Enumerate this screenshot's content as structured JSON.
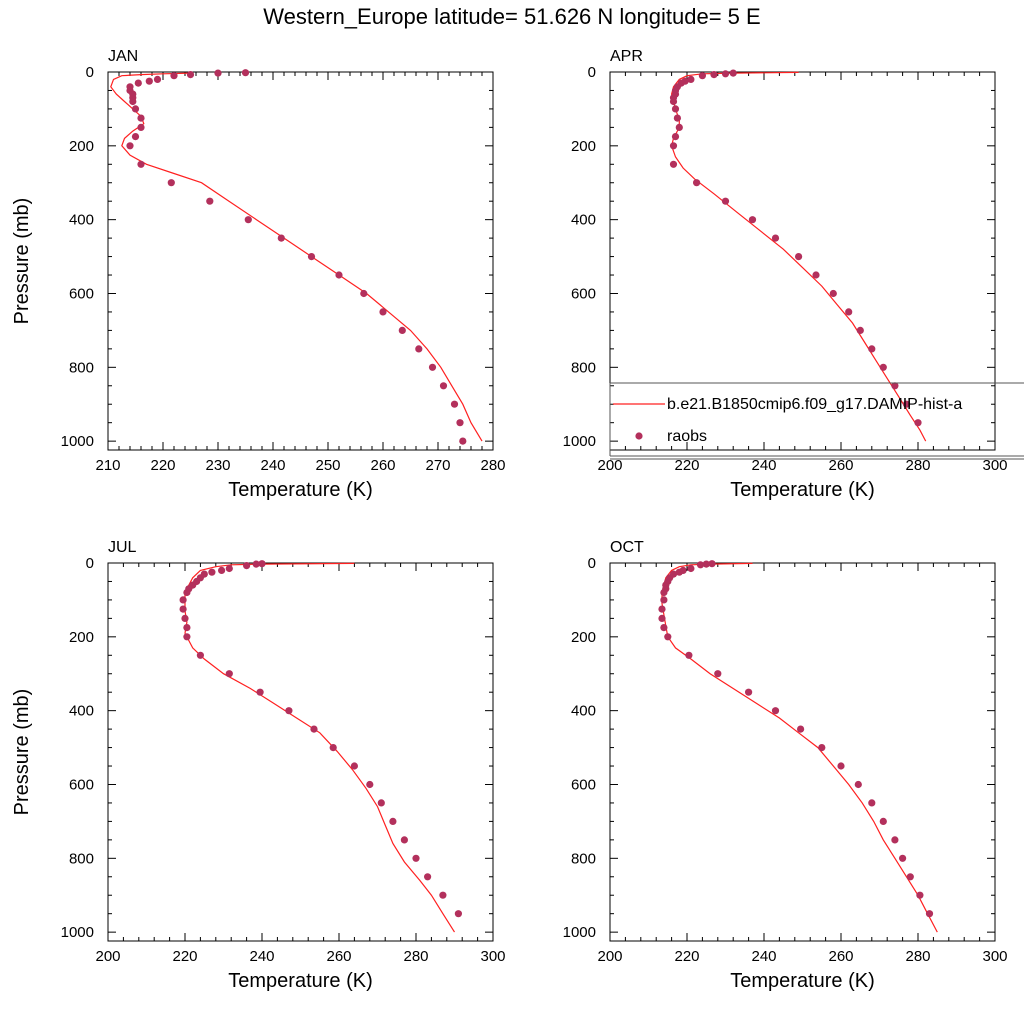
{
  "title": "Western_Europe  latitude= 51.626 N longitude= 5 E",
  "colors": {
    "model": "#ff2020",
    "obs": "#b3305c",
    "axis": "#000000"
  },
  "legend": {
    "entries": [
      {
        "label": "b.e21.B1850cmip6.f09_g17.DAMIP-hist-a",
        "kind": "line"
      },
      {
        "label": "raobs",
        "kind": "marker"
      }
    ]
  },
  "chart_data": [
    {
      "type": "line",
      "title": "JAN",
      "xlabel": "Temperature (K)",
      "ylabel": "Pressure (mb)",
      "xlim": [
        210,
        280
      ],
      "ylim": [
        1024,
        0
      ],
      "xticks": [
        210,
        220,
        230,
        240,
        250,
        260,
        270,
        280
      ],
      "yticks": [
        0,
        200,
        400,
        600,
        800,
        1000
      ],
      "series": [
        {
          "kind": "model",
          "points": [
            [
              225,
              3
            ],
            [
              220,
              5
            ],
            [
              216,
              7
            ],
            [
              212.5,
              10
            ],
            [
              211,
              20
            ],
            [
              210.5,
              40
            ],
            [
              211.5,
              60
            ],
            [
              213,
              80
            ],
            [
              214.5,
              100
            ],
            [
              216,
              120
            ],
            [
              216.5,
              140
            ],
            [
              214.5,
              160
            ],
            [
              213,
              180
            ],
            [
              212.5,
              200
            ],
            [
              214,
              225
            ],
            [
              217,
              250
            ],
            [
              222,
              275
            ],
            [
              227,
              300
            ],
            [
              232,
              350
            ],
            [
              237,
              400
            ],
            [
              242,
              450
            ],
            [
              247,
              500
            ],
            [
              252,
              550
            ],
            [
              257,
              600
            ],
            [
              261,
              650
            ],
            [
              265,
              700
            ],
            [
              268,
              750
            ],
            [
              270.5,
              800
            ],
            [
              272.5,
              850
            ],
            [
              274.5,
              900
            ],
            [
              276,
              950
            ],
            [
              278,
              1000
            ]
          ]
        },
        {
          "kind": "obs",
          "points": [
            [
              235,
              2
            ],
            [
              230,
              3
            ],
            [
              225,
              7
            ],
            [
              222,
              10
            ],
            [
              219,
              20
            ],
            [
              217.5,
              25
            ],
            [
              215.5,
              30
            ],
            [
              214,
              40
            ],
            [
              214,
              50
            ],
            [
              214.5,
              60
            ],
            [
              214.5,
              70
            ],
            [
              214.5,
              80
            ],
            [
              215,
              100
            ],
            [
              216,
              125
            ],
            [
              216,
              150
            ],
            [
              215,
              175
            ],
            [
              214,
              200
            ],
            [
              216,
              250
            ],
            [
              221.5,
              300
            ],
            [
              228.5,
              350
            ],
            [
              235.5,
              400
            ],
            [
              241.5,
              450
            ],
            [
              247,
              500
            ],
            [
              252,
              550
            ],
            [
              256.5,
              600
            ],
            [
              260,
              650
            ],
            [
              263.5,
              700
            ],
            [
              266.5,
              750
            ],
            [
              269,
              800
            ],
            [
              271,
              850
            ],
            [
              273,
              900
            ],
            [
              274,
              950
            ],
            [
              274.5,
              1000
            ]
          ]
        }
      ]
    },
    {
      "type": "line",
      "title": "APR",
      "xlabel": "Temperature (K)",
      "ylabel": "",
      "xlim": [
        200,
        300
      ],
      "ylim": [
        1024,
        0
      ],
      "xticks": [
        200,
        220,
        240,
        260,
        280,
        300
      ],
      "yticks": [
        0,
        200,
        400,
        600,
        800,
        1000
      ],
      "series": [
        {
          "kind": "model",
          "points": [
            [
              249,
              1
            ],
            [
              232,
              3
            ],
            [
              224,
              5
            ],
            [
              220,
              10
            ],
            [
              218,
              20
            ],
            [
              216.5,
              40
            ],
            [
              216,
              60
            ],
            [
              216.5,
              80
            ],
            [
              217,
              100
            ],
            [
              218,
              130
            ],
            [
              218,
              150
            ],
            [
              216.5,
              180
            ],
            [
              216,
              200
            ],
            [
              217,
              230
            ],
            [
              219,
              260
            ],
            [
              222,
              290
            ],
            [
              227,
              330
            ],
            [
              233,
              380
            ],
            [
              239,
              430
            ],
            [
              245,
              480
            ],
            [
              250,
              530
            ],
            [
              255,
              580
            ],
            [
              259,
              630
            ],
            [
              263,
              680
            ],
            [
              266,
              730
            ],
            [
              269,
              780
            ],
            [
              272,
              830
            ],
            [
              275,
              880
            ],
            [
              278,
              930
            ],
            [
              280.5,
              970
            ],
            [
              282,
              1000
            ]
          ]
        },
        {
          "kind": "obs",
          "points": [
            [
              232,
              3
            ],
            [
              230,
              5
            ],
            [
              227,
              7
            ],
            [
              224,
              10
            ],
            [
              221,
              20
            ],
            [
              219.5,
              25
            ],
            [
              218.5,
              30
            ],
            [
              217.5,
              40
            ],
            [
              217,
              50
            ],
            [
              217,
              60
            ],
            [
              216.5,
              70
            ],
            [
              216.5,
              80
            ],
            [
              217,
              100
            ],
            [
              217.5,
              125
            ],
            [
              218,
              150
            ],
            [
              217,
              175
            ],
            [
              216.5,
              200
            ],
            [
              216.5,
              250
            ],
            [
              222.5,
              300
            ],
            [
              230,
              350
            ],
            [
              237,
              400
            ],
            [
              243,
              450
            ],
            [
              249,
              500
            ],
            [
              253.5,
              550
            ],
            [
              258,
              600
            ],
            [
              262,
              650
            ],
            [
              265,
              700
            ],
            [
              268,
              750
            ],
            [
              271,
              800
            ],
            [
              274,
              850
            ],
            [
              277,
              900
            ],
            [
              280,
              950
            ]
          ]
        }
      ]
    },
    {
      "type": "line",
      "title": "JUL",
      "xlabel": "Temperature (K)",
      "ylabel": "Pressure (mb)",
      "xlim": [
        200,
        300
      ],
      "ylim": [
        1024,
        0
      ],
      "xticks": [
        200,
        220,
        240,
        260,
        280,
        300
      ],
      "yticks": [
        0,
        200,
        400,
        600,
        800,
        1000
      ],
      "series": [
        {
          "kind": "model",
          "points": [
            [
              264,
              1
            ],
            [
              240,
              3
            ],
            [
              232,
              5
            ],
            [
              228,
              10
            ],
            [
              224,
              20
            ],
            [
              222,
              40
            ],
            [
              221,
              60
            ],
            [
              220,
              80
            ],
            [
              220,
              100
            ],
            [
              220,
              130
            ],
            [
              220.5,
              160
            ],
            [
              220,
              190
            ],
            [
              221,
              210
            ],
            [
              222,
              230
            ],
            [
              225,
              260
            ],
            [
              230,
              300
            ],
            [
              237,
              340
            ],
            [
              243,
              380
            ],
            [
              249,
              420
            ],
            [
              255,
              460
            ],
            [
              259.5,
              510
            ],
            [
              263.5,
              560
            ],
            [
              267,
              610
            ],
            [
              270,
              660
            ],
            [
              272,
              710
            ],
            [
              274,
              760
            ],
            [
              277,
              810
            ],
            [
              281,
              860
            ],
            [
              284,
              900
            ],
            [
              287,
              950
            ],
            [
              290,
              1000
            ]
          ]
        },
        {
          "kind": "obs",
          "points": [
            [
              240,
              2
            ],
            [
              238.5,
              3
            ],
            [
              236,
              7
            ],
            [
              231.5,
              15
            ],
            [
              229.5,
              20
            ],
            [
              227,
              25
            ],
            [
              225,
              30
            ],
            [
              224,
              40
            ],
            [
              223,
              50
            ],
            [
              222,
              60
            ],
            [
              221,
              70
            ],
            [
              220.5,
              80
            ],
            [
              219.5,
              100
            ],
            [
              219.5,
              125
            ],
            [
              220,
              150
            ],
            [
              220.5,
              175
            ],
            [
              220.5,
              200
            ],
            [
              224,
              250
            ],
            [
              231.5,
              300
            ],
            [
              239.5,
              350
            ],
            [
              247,
              400
            ],
            [
              253.5,
              450
            ],
            [
              258.5,
              500
            ],
            [
              264,
              550
            ],
            [
              268,
              600
            ],
            [
              271,
              650
            ],
            [
              274,
              700
            ],
            [
              277,
              750
            ],
            [
              280,
              800
            ],
            [
              283,
              850
            ],
            [
              287,
              900
            ],
            [
              291,
              950
            ]
          ]
        }
      ]
    },
    {
      "type": "line",
      "title": "OCT",
      "xlabel": "Temperature (K)",
      "ylabel": "",
      "xlim": [
        200,
        300
      ],
      "ylim": [
        1024,
        0
      ],
      "xticks": [
        200,
        220,
        240,
        260,
        280,
        300
      ],
      "yticks": [
        0,
        200,
        400,
        600,
        800,
        1000
      ],
      "series": [
        {
          "kind": "model",
          "points": [
            [
              237,
              1
            ],
            [
              226,
              3
            ],
            [
              221,
              5
            ],
            [
              218,
              10
            ],
            [
              216,
              20
            ],
            [
              214.5,
              40
            ],
            [
              214,
              60
            ],
            [
              213.5,
              80
            ],
            [
              213.5,
              110
            ],
            [
              214,
              140
            ],
            [
              214.5,
              170
            ],
            [
              215,
              200
            ],
            [
              217,
              230
            ],
            [
              221,
              260
            ],
            [
              226,
              300
            ],
            [
              232,
              340
            ],
            [
              238,
              380
            ],
            [
              244,
              420
            ],
            [
              249,
              460
            ],
            [
              254,
              500
            ],
            [
              258,
              550
            ],
            [
              262,
              600
            ],
            [
              265.5,
              650
            ],
            [
              268.5,
              700
            ],
            [
              271,
              750
            ],
            [
              274,
              800
            ],
            [
              277,
              850
            ],
            [
              280,
              900
            ],
            [
              282.5,
              950
            ],
            [
              285,
              1000
            ]
          ]
        },
        {
          "kind": "obs",
          "points": [
            [
              226.5,
              2
            ],
            [
              225,
              3
            ],
            [
              223.5,
              5
            ],
            [
              221,
              15
            ],
            [
              219,
              20
            ],
            [
              218,
              25
            ],
            [
              216.5,
              30
            ],
            [
              215.5,
              40
            ],
            [
              215,
              50
            ],
            [
              214.5,
              60
            ],
            [
              214.5,
              70
            ],
            [
              214,
              80
            ],
            [
              214,
              100
            ],
            [
              213.5,
              125
            ],
            [
              213.5,
              150
            ],
            [
              214,
              175
            ],
            [
              215,
              200
            ],
            [
              220.5,
              250
            ],
            [
              228,
              300
            ],
            [
              236,
              350
            ],
            [
              243,
              400
            ],
            [
              249.5,
              450
            ],
            [
              255,
              500
            ],
            [
              260,
              550
            ],
            [
              264.5,
              600
            ],
            [
              268,
              650
            ],
            [
              271,
              700
            ],
            [
              274,
              750
            ],
            [
              276,
              800
            ],
            [
              278,
              850
            ],
            [
              280.5,
              900
            ],
            [
              283,
              950
            ]
          ]
        }
      ]
    }
  ]
}
